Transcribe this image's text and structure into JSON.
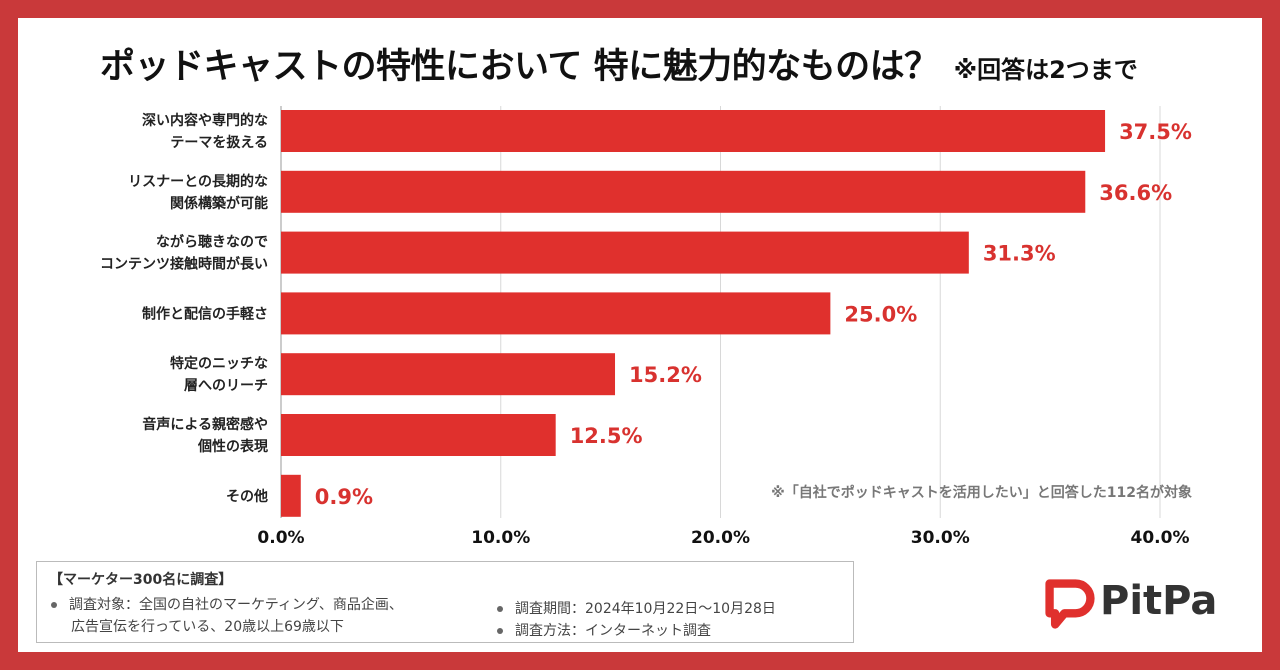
{
  "chart_data": {
    "type": "bar",
    "orientation": "horizontal",
    "title": "ポッドキャストの特性において 特に魅力的なものは？",
    "subtitle": "※回答は2つまで",
    "categories": [
      [
        "深い内容や専門的な",
        "テーマを扱える"
      ],
      [
        "リスナーとの長期的な",
        "関係構築が可能"
      ],
      [
        "ながら聴きなので",
        "コンテンツ接触時間が長い"
      ],
      [
        "制作と配信の手軽さ"
      ],
      [
        "特定のニッチな",
        "層へのリーチ"
      ],
      [
        "音声による親密感や",
        "個性の表現"
      ],
      [
        "その他"
      ]
    ],
    "values": [
      37.5,
      36.6,
      31.3,
      25.0,
      15.2,
      12.5,
      0.9
    ],
    "value_labels": [
      "37.5%",
      "36.6%",
      "31.3%",
      "25.0%",
      "15.2%",
      "12.5%",
      "0.9%"
    ],
    "xlim": [
      0,
      40
    ],
    "xticks": [
      0,
      10,
      20,
      30,
      40
    ],
    "xtick_labels": [
      "0.0%",
      "10.0%",
      "20.0%",
      "30.0%",
      "40.0%"
    ],
    "grid": true,
    "bar_color": "#e0302d",
    "value_label_color": "#d8322f",
    "note": "※「自社でポッドキャストを活用したい」と回答した112名が対象"
  },
  "survey": {
    "header": "【マーケター300名に調査】",
    "target_line1": "調査対象：全国の自社のマーケティング、商品企画、",
    "target_line2": "広告宣伝を行っている、20歳以上69歳以下",
    "period": "調査期間：2024年10月22日〜10月28日",
    "method": "調査方法：インターネット調査"
  },
  "brand": {
    "name": "PitPa",
    "color": "#e0302d",
    "icon": "pitpa-logo-icon"
  },
  "colors": {
    "frame": "#c9393a",
    "background": "#ffffff"
  }
}
